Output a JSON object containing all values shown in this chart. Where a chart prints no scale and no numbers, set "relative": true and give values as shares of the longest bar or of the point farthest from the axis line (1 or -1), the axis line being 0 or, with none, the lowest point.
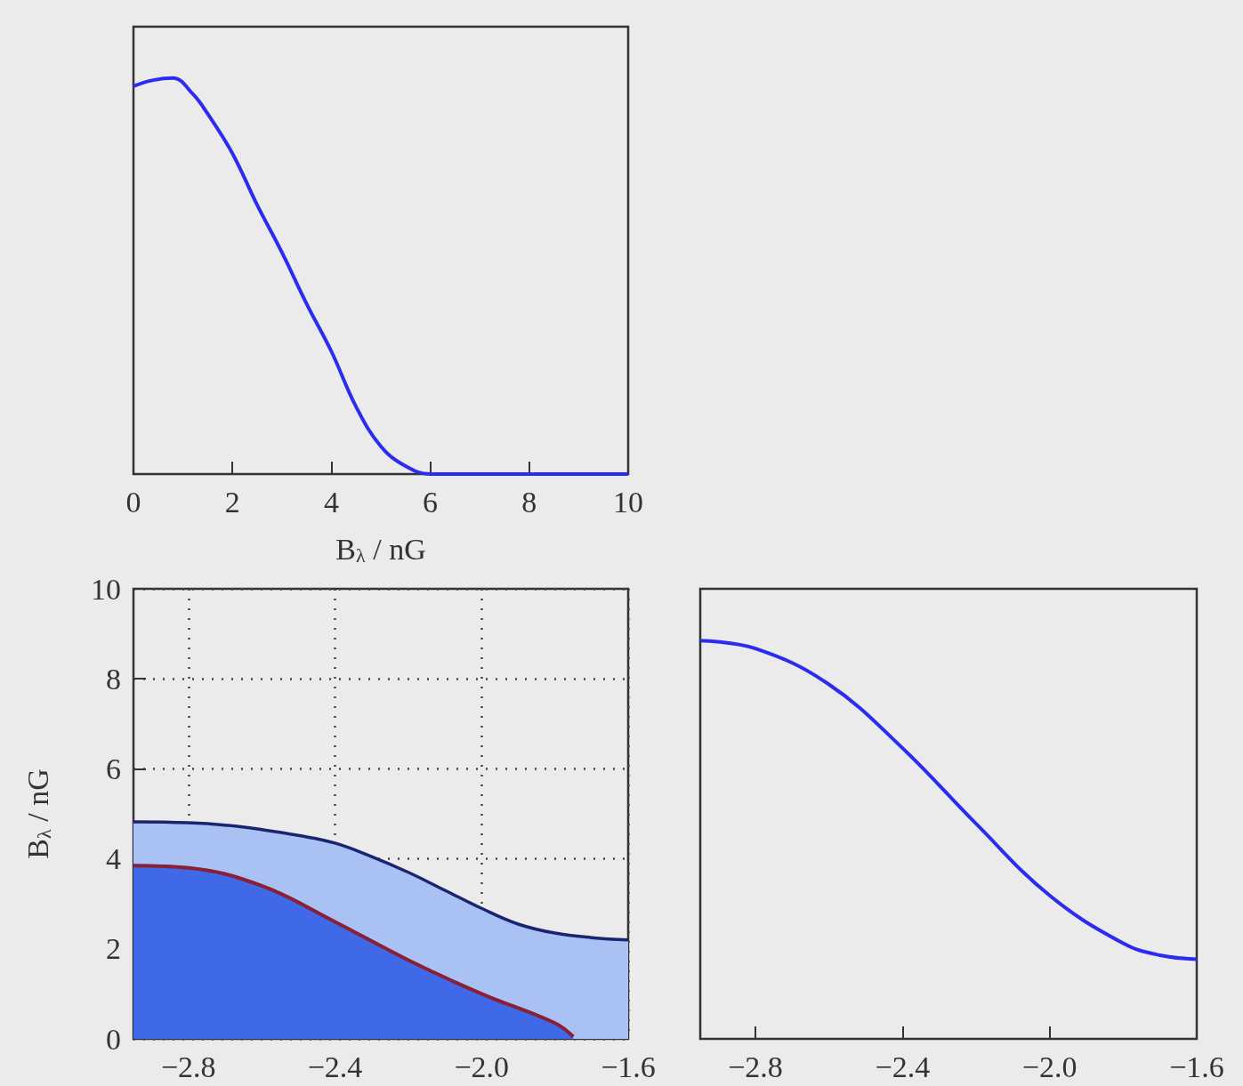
{
  "chart_data": [
    {
      "type": "line",
      "xlabel": "B$_{λ}$ / nG",
      "relative": true,
      "xlim": [
        0,
        10
      ],
      "xticks": [
        0,
        2,
        4,
        6,
        8,
        10
      ],
      "series": [
        {
          "color": "#2b2cf0",
          "x": [
            0,
            0.4,
            0.8,
            1.2,
            1.5,
            2,
            2.5,
            3,
            3.5,
            4,
            4.5,
            5,
            5.5,
            6,
            7,
            8,
            9,
            10
          ],
          "values": [
            0.98,
            0.995,
            1.0,
            0.96,
            0.91,
            0.81,
            0.68,
            0.56,
            0.43,
            0.31,
            0.17,
            0.07,
            0.02,
            0,
            0,
            0,
            0,
            0
          ]
        }
      ]
    },
    {
      "type": "area",
      "ylabel": "B$_{λ}$ / nG",
      "grid": true,
      "xlim": [
        -2.95,
        -1.6
      ],
      "xticks": [
        {
          "value": -2.8,
          "label": "−2.8"
        },
        {
          "value": -2.4,
          "label": "−2.4"
        },
        {
          "value": -2.0,
          "label": "−2.0"
        },
        {
          "value": -1.6,
          "label": "−1.6"
        }
      ],
      "ylim": [
        0,
        10
      ],
      "yticks": [
        0,
        2,
        4,
        6,
        8,
        10
      ],
      "series": [
        {
          "color": "#1b2470",
          "x": [
            -2.95,
            -2.8,
            -2.7,
            -2.6,
            -2.5,
            -2.4,
            -2.3,
            -2.2,
            -2.1,
            -2.0,
            -1.9,
            -1.8,
            -1.7,
            -1.6
          ],
          "values": [
            4.82,
            4.8,
            4.75,
            4.65,
            4.52,
            4.35,
            4.05,
            3.7,
            3.3,
            2.9,
            2.55,
            2.35,
            2.25,
            2.2
          ]
        },
        {
          "type": "line",
          "color": "#8a1f35",
          "x": [
            -2.95,
            -2.8,
            -2.6,
            -2.4,
            -2.2,
            -2.0,
            -1.8,
            -1.75
          ],
          "values": [
            3.85,
            3.8,
            3.4,
            2.6,
            1.75,
            1.0,
            0.35,
            0.05
          ]
        },
        {
          "color": "#3f69e6",
          "x": [
            -2.95,
            -2.8,
            -2.6,
            -2.4,
            -2.2,
            -2.0,
            -1.8,
            -1.75
          ],
          "values": [
            3.85,
            3.8,
            3.4,
            2.6,
            1.75,
            1.0,
            0.35,
            0.05
          ]
        }
      ]
    },
    {
      "type": "line",
      "relative": true,
      "xlim": [
        -2.95,
        -1.6
      ],
      "xticks": [
        {
          "value": -2.8,
          "label": "−2.8"
        },
        {
          "value": -2.4,
          "label": "−2.4"
        },
        {
          "value": -2.0,
          "label": "−2.0"
        },
        {
          "value": -1.6,
          "label": "−1.6"
        }
      ],
      "series": [
        {
          "color": "#2b2cf0",
          "x": [
            -2.95,
            -2.8,
            -2.6,
            -2.4,
            -2.2,
            -2.0,
            -1.8,
            -1.7,
            -1.6
          ],
          "values": [
            1.0,
            0.98,
            0.89,
            0.73,
            0.54,
            0.36,
            0.24,
            0.21,
            0.2
          ]
        }
      ]
    }
  ]
}
